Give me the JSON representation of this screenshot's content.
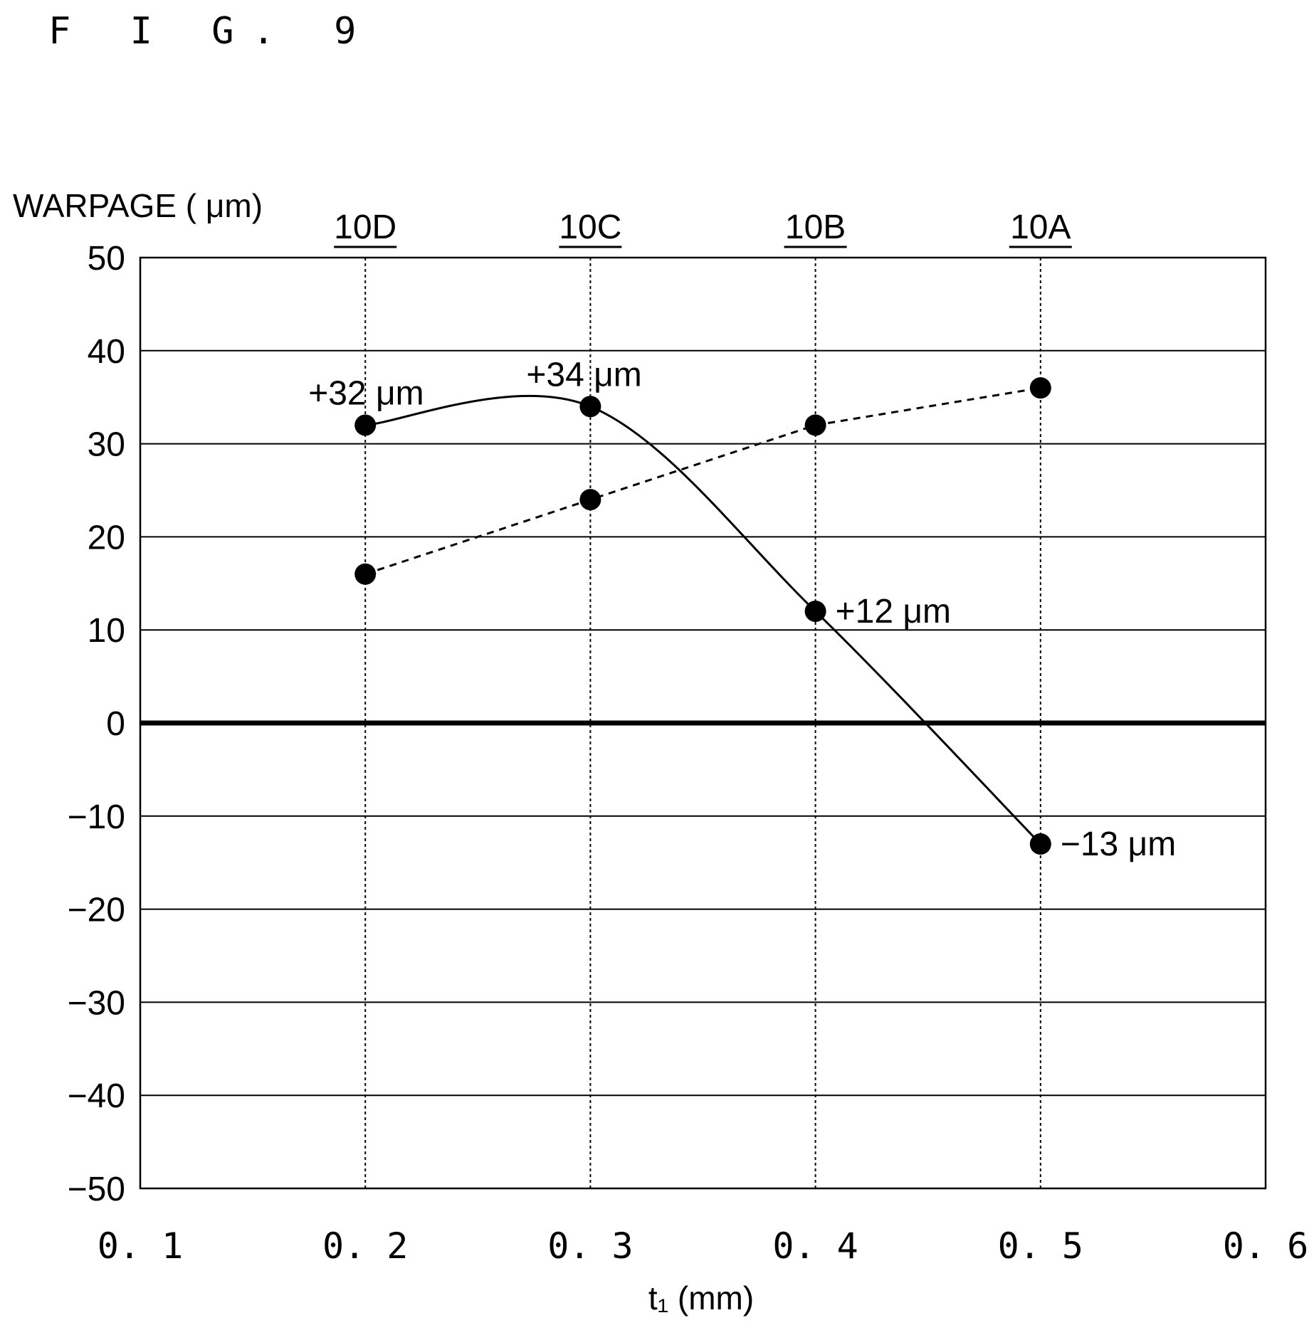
{
  "figure_label": "F I G. 9",
  "chart_data": {
    "type": "line",
    "xlabel": "t₁ (mm)",
    "ylabel": "WARPAGE ( μm)",
    "xlim": [
      0.1,
      0.6
    ],
    "ylim": [
      -50,
      50
    ],
    "x_ticks": [
      0.1,
      0.2,
      0.3,
      0.4,
      0.5,
      0.6
    ],
    "x_tick_labels": [
      "0. 1",
      "0. 2",
      "0. 3",
      "0. 4",
      "0. 5",
      "0. 6"
    ],
    "y_ticks": [
      50,
      40,
      30,
      20,
      10,
      0,
      -10,
      -20,
      -30,
      -40,
      -50
    ],
    "y_tick_labels": [
      "50",
      "40",
      "30",
      "20",
      "10",
      "0",
      "−10",
      "−20",
      "−30",
      "−40",
      "−50"
    ],
    "grid": true,
    "zero_line": true,
    "top_labels": [
      {
        "x": 0.2,
        "text": "10D"
      },
      {
        "x": 0.3,
        "text": "10C"
      },
      {
        "x": 0.4,
        "text": "10B"
      },
      {
        "x": 0.5,
        "text": "10A"
      }
    ],
    "series": [
      {
        "style": "solid",
        "smooth": true,
        "x": [
          0.2,
          0.3,
          0.4,
          0.5
        ],
        "y": [
          32,
          34,
          12,
          -13
        ],
        "labels": [
          "+32 μm",
          "+34 μm",
          "+12 μm",
          "−13 μm"
        ]
      },
      {
        "style": "dashed",
        "smooth": false,
        "x": [
          0.2,
          0.3,
          0.4,
          0.5
        ],
        "y": [
          16,
          24,
          32,
          36
        ]
      }
    ]
  }
}
